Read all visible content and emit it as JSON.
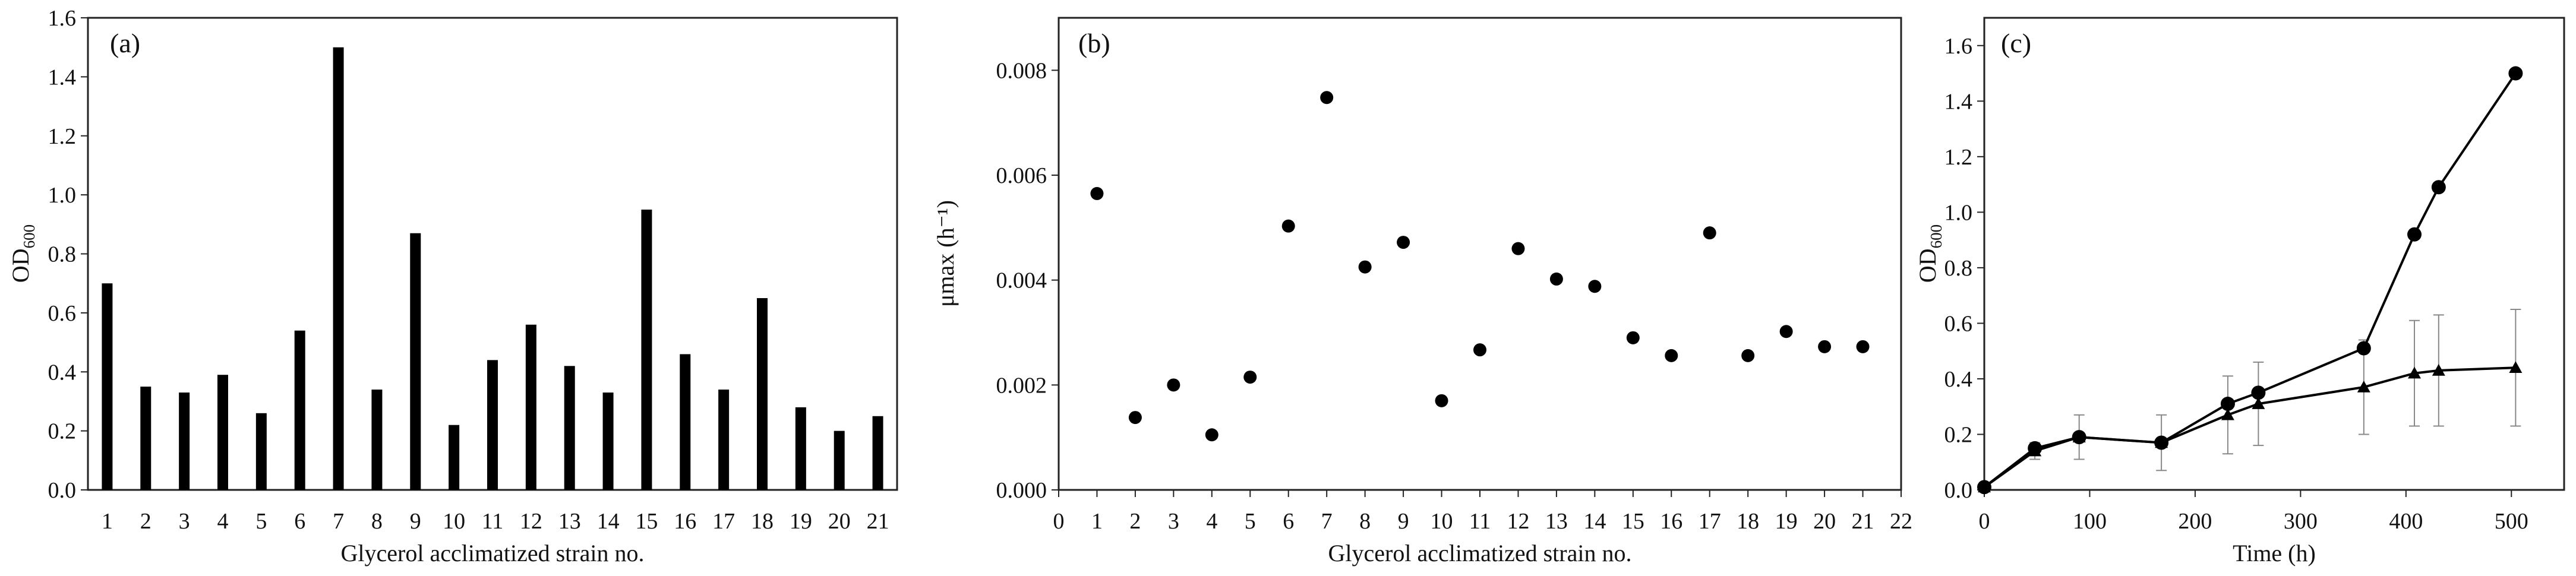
{
  "chart_data": [
    {
      "type": "bar",
      "panel_label": "(a)",
      "xlabel": "Glycerol acclimatized strain no.",
      "ylabel": "OD",
      "ylabel_sub": "600",
      "categories": [
        "1",
        "2",
        "3",
        "4",
        "5",
        "6",
        "7",
        "8",
        "9",
        "10",
        "11",
        "12",
        "13",
        "14",
        "15",
        "16",
        "17",
        "18",
        "19",
        "20",
        "21"
      ],
      "values": [
        0.7,
        0.35,
        0.33,
        0.39,
        0.26,
        0.54,
        1.5,
        0.34,
        0.87,
        0.22,
        0.44,
        0.56,
        0.42,
        0.33,
        0.95,
        0.46,
        0.34,
        0.65,
        0.28,
        0.2,
        0.25
      ],
      "ylim": [
        0,
        1.6
      ],
      "yticks": [
        "0.0",
        "0.2",
        "0.4",
        "0.6",
        "0.8",
        "1.0",
        "1.2",
        "1.4",
        "1.6"
      ],
      "grid": false,
      "colors": {
        "bar": "#000000"
      }
    },
    {
      "type": "scatter",
      "panel_label": "(b)",
      "xlabel": "Glycerol acclimatized strain no.",
      "ylabel": "μmax (h⁻¹)",
      "x": [
        1,
        2,
        3,
        4,
        5,
        6,
        7,
        8,
        9,
        10,
        11,
        12,
        13,
        14,
        15,
        16,
        17,
        18,
        19,
        20,
        21
      ],
      "y": [
        0.00565,
        0.00138,
        0.002,
        0.00105,
        0.00215,
        0.00503,
        0.00748,
        0.00425,
        0.00472,
        0.0017,
        0.00267,
        0.0046,
        0.00402,
        0.00388,
        0.0029,
        0.00256,
        0.0049,
        0.00256,
        0.00302,
        0.00273,
        0.00273
      ],
      "xlim": [
        0,
        22
      ],
      "ylim": [
        0,
        0.009
      ],
      "xticks": [
        "0",
        "1",
        "2",
        "3",
        "4",
        "5",
        "6",
        "7",
        "8",
        "9",
        "10",
        "11",
        "12",
        "13",
        "14",
        "15",
        "16",
        "17",
        "18",
        "19",
        "20",
        "21",
        "22"
      ],
      "yticks": [
        "0.000",
        "0.002",
        "0.004",
        "0.006",
        "0.008"
      ],
      "grid": false,
      "colors": {
        "marker": "#000000"
      }
    },
    {
      "type": "line",
      "panel_label": "(c)",
      "xlabel": "Time (h)",
      "ylabel": "OD",
      "ylabel_sub": "600",
      "xlim": [
        0,
        550
      ],
      "ylim": [
        0,
        1.7
      ],
      "xticks": [
        "0",
        "100",
        "200",
        "300",
        "400",
        "500"
      ],
      "yticks": [
        "0.0",
        "0.2",
        "0.4",
        "0.6",
        "0.8",
        "1.0",
        "1.2",
        "1.4",
        "1.6"
      ],
      "grid": false,
      "series": [
        {
          "marker": "circle",
          "x": [
            0,
            48,
            90,
            168,
            231,
            260,
            360,
            408,
            431,
            504
          ],
          "y": [
            0.01,
            0.15,
            0.19,
            0.17,
            0.31,
            0.35,
            0.51,
            0.92,
            1.09,
            1.5
          ]
        },
        {
          "marker": "triangle",
          "x": [
            0,
            48,
            90,
            168,
            231,
            260,
            360,
            408,
            431,
            504
          ],
          "y": [
            0.01,
            0.14,
            0.19,
            0.17,
            0.27,
            0.31,
            0.37,
            0.42,
            0.43,
            0.44
          ],
          "error": [
            0,
            0.03,
            0.08,
            0.1,
            0.14,
            0.15,
            0.17,
            0.19,
            0.2,
            0.21
          ]
        }
      ],
      "colors": {
        "line": "#000000",
        "error": "#888888"
      }
    }
  ]
}
